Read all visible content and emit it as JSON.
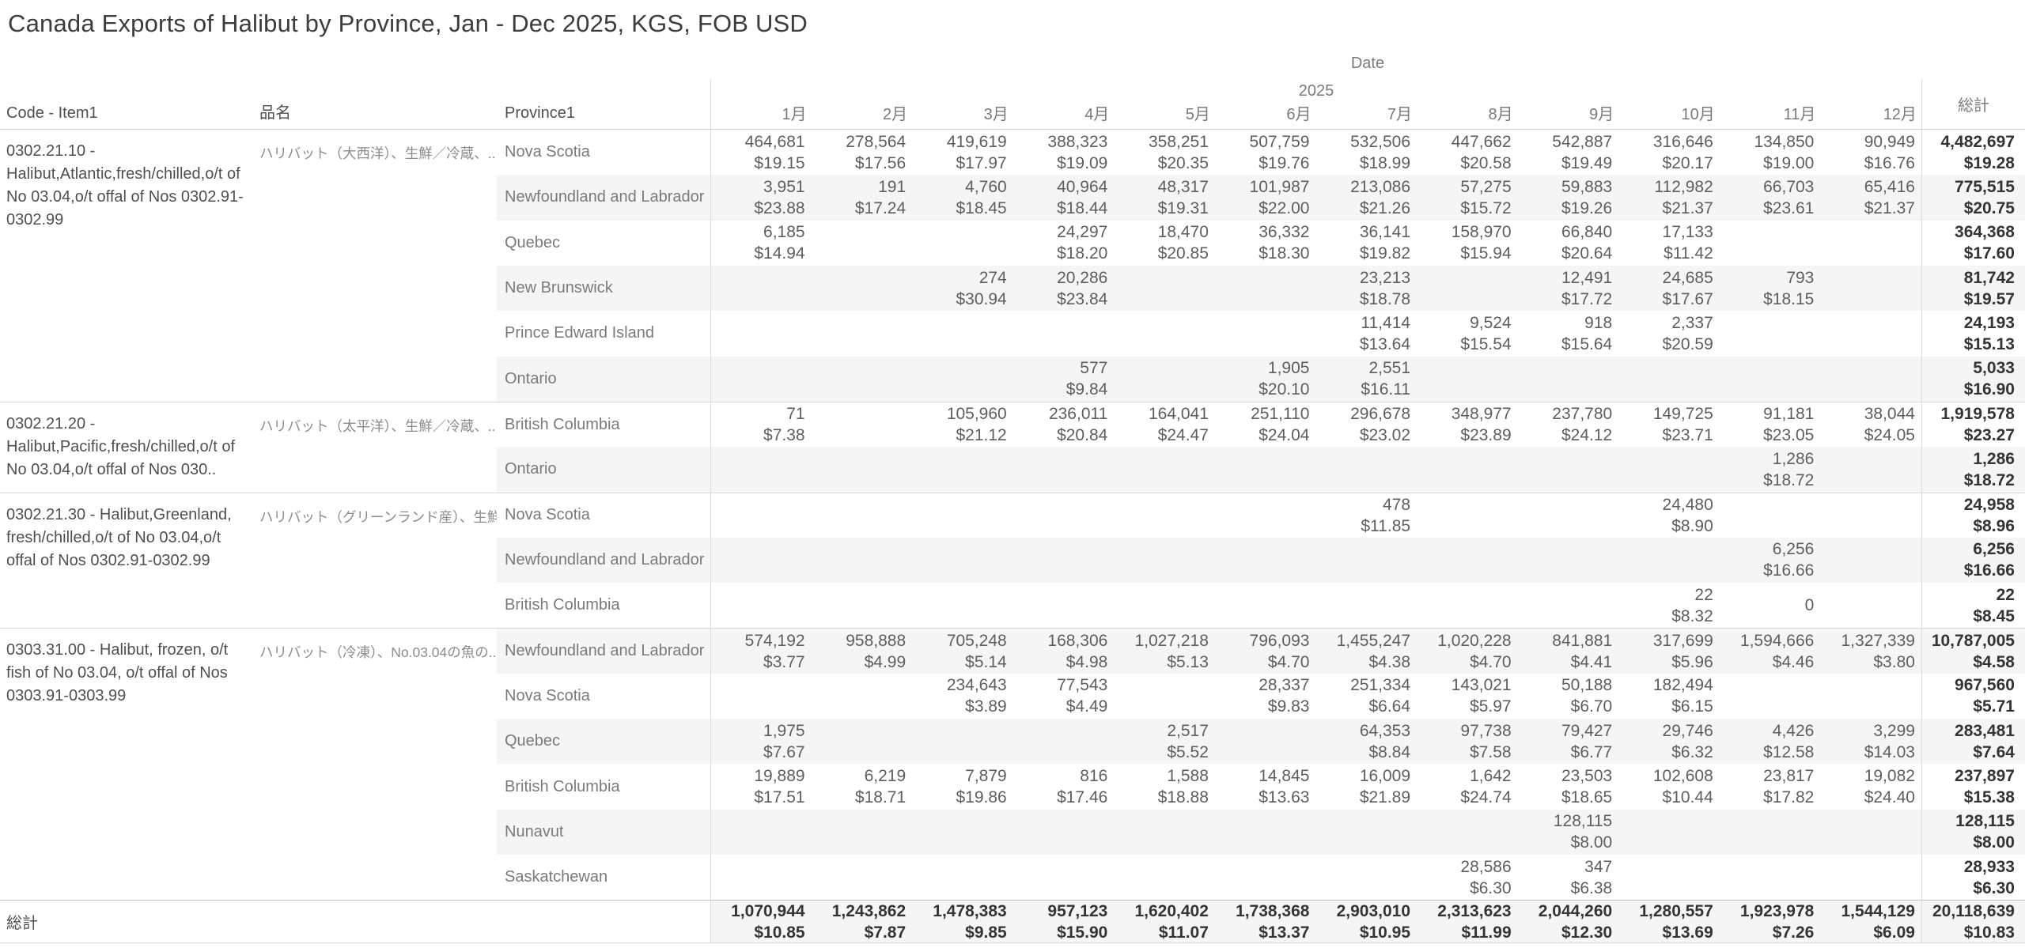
{
  "title": "Canada Exports of Halibut by Province, Jan - Dec 2025, KGS, FOB USD",
  "header": {
    "date_label": "Date",
    "year_label": "2025",
    "code_col": "Code - Item1",
    "name_col": "品名",
    "province_col": "Province1",
    "months": [
      "1月",
      "2月",
      "3月",
      "4月",
      "5月",
      "6月",
      "7月",
      "8月",
      "9月",
      "10月",
      "11月",
      "12月"
    ],
    "total_col": "総計"
  },
  "colors": {
    "banding": "#f5f5f5",
    "gridline": "#dcdcdc",
    "group_separator": "#d9d9d9",
    "grand_total_topline": "#c3c3c3",
    "title_text": "#3c3c3c",
    "header_text": "#7a7a7a",
    "data_text": "#5e5e5e",
    "total_text": "#343434"
  },
  "groups": [
    {
      "code": "0302.21.10 - Halibut,Atlantic,fresh/chilled,o/t of No 03.04,o/t offal of Nos 0302.91-0302.99",
      "name": "ハリバット（大西洋）、生鮮／冷蔵、..",
      "rows": [
        {
          "province": "Nova Scotia",
          "cells": [
            [
              "464,681",
              "$19.15"
            ],
            [
              "278,564",
              "$17.56"
            ],
            [
              "419,619",
              "$17.97"
            ],
            [
              "388,323",
              "$19.09"
            ],
            [
              "358,251",
              "$20.35"
            ],
            [
              "507,759",
              "$19.76"
            ],
            [
              "532,506",
              "$18.99"
            ],
            [
              "447,662",
              "$20.58"
            ],
            [
              "542,887",
              "$19.49"
            ],
            [
              "316,646",
              "$20.17"
            ],
            [
              "134,850",
              "$19.00"
            ],
            [
              "90,949",
              "$16.76"
            ]
          ],
          "total": [
            "4,482,697",
            "$19.28"
          ]
        },
        {
          "province": "Newfoundland and Labrador",
          "cells": [
            [
              "3,951",
              "$23.88"
            ],
            [
              "191",
              "$17.24"
            ],
            [
              "4,760",
              "$18.45"
            ],
            [
              "40,964",
              "$18.44"
            ],
            [
              "48,317",
              "$19.31"
            ],
            [
              "101,987",
              "$22.00"
            ],
            [
              "213,086",
              "$21.26"
            ],
            [
              "57,275",
              "$15.72"
            ],
            [
              "59,883",
              "$19.26"
            ],
            [
              "112,982",
              "$21.37"
            ],
            [
              "66,703",
              "$23.61"
            ],
            [
              "65,416",
              "$21.37"
            ]
          ],
          "total": [
            "775,515",
            "$20.75"
          ]
        },
        {
          "province": "Quebec",
          "cells": [
            [
              "6,185",
              "$14.94"
            ],
            null,
            null,
            [
              "24,297",
              "$18.20"
            ],
            [
              "18,470",
              "$20.85"
            ],
            [
              "36,332",
              "$18.30"
            ],
            [
              "36,141",
              "$19.82"
            ],
            [
              "158,970",
              "$15.94"
            ],
            [
              "66,840",
              "$20.64"
            ],
            [
              "17,133",
              "$11.42"
            ],
            null,
            null
          ],
          "total": [
            "364,368",
            "$17.60"
          ]
        },
        {
          "province": "New Brunswick",
          "cells": [
            null,
            null,
            [
              "274",
              "$30.94"
            ],
            [
              "20,286",
              "$23.84"
            ],
            null,
            null,
            [
              "23,213",
              "$18.78"
            ],
            null,
            [
              "12,491",
              "$17.72"
            ],
            [
              "24,685",
              "$17.67"
            ],
            [
              "793",
              "$18.15"
            ],
            null
          ],
          "total": [
            "81,742",
            "$19.57"
          ]
        },
        {
          "province": "Prince Edward Island",
          "cells": [
            null,
            null,
            null,
            null,
            null,
            null,
            [
              "11,414",
              "$13.64"
            ],
            [
              "9,524",
              "$15.54"
            ],
            [
              "918",
              "$15.64"
            ],
            [
              "2,337",
              "$20.59"
            ],
            null,
            null
          ],
          "total": [
            "24,193",
            "$15.13"
          ]
        },
        {
          "province": "Ontario",
          "cells": [
            null,
            null,
            null,
            [
              "577",
              "$9.84"
            ],
            null,
            [
              "1,905",
              "$20.10"
            ],
            [
              "2,551",
              "$16.11"
            ],
            null,
            null,
            null,
            null,
            null
          ],
          "total": [
            "5,033",
            "$16.90"
          ]
        }
      ]
    },
    {
      "code": "0302.21.20 - Halibut,Pacific,fresh/chilled,o/t of No 03.04,o/t offal of Nos 030..",
      "name": "ハリバット（太平洋）、生鮮／冷蔵、..",
      "rows": [
        {
          "province": "British Columbia",
          "cells": [
            [
              "71",
              "$7.38"
            ],
            null,
            [
              "105,960",
              "$21.12"
            ],
            [
              "236,011",
              "$20.84"
            ],
            [
              "164,041",
              "$24.47"
            ],
            [
              "251,110",
              "$24.04"
            ],
            [
              "296,678",
              "$23.02"
            ],
            [
              "348,977",
              "$23.89"
            ],
            [
              "237,780",
              "$24.12"
            ],
            [
              "149,725",
              "$23.71"
            ],
            [
              "91,181",
              "$23.05"
            ],
            [
              "38,044",
              "$24.05"
            ]
          ],
          "total": [
            "1,919,578",
            "$23.27"
          ]
        },
        {
          "province": "Ontario",
          "cells": [
            null,
            null,
            null,
            null,
            null,
            null,
            null,
            null,
            null,
            null,
            [
              "1,286",
              "$18.72"
            ],
            null
          ],
          "total": [
            "1,286",
            "$18.72"
          ]
        }
      ]
    },
    {
      "code": "0302.21.30 - Halibut,Greenland, fresh/chilled,o/t of No 03.04,o/t offal of Nos 0302.91-0302.99",
      "name": "ハリバット（グリーンランド産）、生鮮／..",
      "rows": [
        {
          "province": "Nova Scotia",
          "cells": [
            null,
            null,
            null,
            null,
            null,
            null,
            [
              "478",
              "$11.85"
            ],
            null,
            null,
            [
              "24,480",
              "$8.90"
            ],
            null,
            null
          ],
          "total": [
            "24,958",
            "$8.96"
          ]
        },
        {
          "province": "Newfoundland and Labrador",
          "cells": [
            null,
            null,
            null,
            null,
            null,
            null,
            null,
            null,
            null,
            null,
            [
              "6,256",
              "$16.66"
            ],
            null
          ],
          "total": [
            "6,256",
            "$16.66"
          ]
        },
        {
          "province": "British Columbia",
          "cells": [
            null,
            null,
            null,
            null,
            null,
            null,
            null,
            null,
            null,
            [
              "22",
              "$8.32"
            ],
            [
              "0",
              ""
            ],
            null
          ],
          "total": [
            "22",
            "$8.45"
          ]
        }
      ]
    },
    {
      "code": "0303.31.00 - Halibut, frozen, o/t fish of No 03.04, o/t offal of Nos 0303.91-0303.99",
      "name": "ハリバット（冷凍）、No.03.04の魚の..",
      "rows": [
        {
          "province": "Newfoundland and Labrador",
          "cells": [
            [
              "574,192",
              "$3.77"
            ],
            [
              "958,888",
              "$4.99"
            ],
            [
              "705,248",
              "$5.14"
            ],
            [
              "168,306",
              "$4.98"
            ],
            [
              "1,027,218",
              "$5.13"
            ],
            [
              "796,093",
              "$4.70"
            ],
            [
              "1,455,247",
              "$4.38"
            ],
            [
              "1,020,228",
              "$4.70"
            ],
            [
              "841,881",
              "$4.41"
            ],
            [
              "317,699",
              "$5.96"
            ],
            [
              "1,594,666",
              "$4.46"
            ],
            [
              "1,327,339",
              "$3.80"
            ]
          ],
          "total": [
            "10,787,005",
            "$4.58"
          ]
        },
        {
          "province": "Nova Scotia",
          "cells": [
            null,
            null,
            [
              "234,643",
              "$3.89"
            ],
            [
              "77,543",
              "$4.49"
            ],
            null,
            [
              "28,337",
              "$9.83"
            ],
            [
              "251,334",
              "$6.64"
            ],
            [
              "143,021",
              "$5.97"
            ],
            [
              "50,188",
              "$6.70"
            ],
            [
              "182,494",
              "$6.15"
            ],
            null,
            null
          ],
          "total": [
            "967,560",
            "$5.71"
          ]
        },
        {
          "province": "Quebec",
          "cells": [
            [
              "1,975",
              "$7.67"
            ],
            null,
            null,
            null,
            [
              "2,517",
              "$5.52"
            ],
            null,
            [
              "64,353",
              "$8.84"
            ],
            [
              "97,738",
              "$7.58"
            ],
            [
              "79,427",
              "$6.77"
            ],
            [
              "29,746",
              "$6.32"
            ],
            [
              "4,426",
              "$12.58"
            ],
            [
              "3,299",
              "$14.03"
            ]
          ],
          "total": [
            "283,481",
            "$7.64"
          ]
        },
        {
          "province": "British Columbia",
          "cells": [
            [
              "19,889",
              "$17.51"
            ],
            [
              "6,219",
              "$18.71"
            ],
            [
              "7,879",
              "$19.86"
            ],
            [
              "816",
              "$17.46"
            ],
            [
              "1,588",
              "$18.88"
            ],
            [
              "14,845",
              "$13.63"
            ],
            [
              "16,009",
              "$21.89"
            ],
            [
              "1,642",
              "$24.74"
            ],
            [
              "23,503",
              "$18.65"
            ],
            [
              "102,608",
              "$10.44"
            ],
            [
              "23,817",
              "$17.82"
            ],
            [
              "19,082",
              "$24.40"
            ]
          ],
          "total": [
            "237,897",
            "$15.38"
          ]
        },
        {
          "province": "Nunavut",
          "cells": [
            null,
            null,
            null,
            null,
            null,
            null,
            null,
            null,
            [
              "128,115",
              "$8.00"
            ],
            null,
            null,
            null
          ],
          "total": [
            "128,115",
            "$8.00"
          ]
        },
        {
          "province": "Saskatchewan",
          "cells": [
            null,
            null,
            null,
            null,
            null,
            null,
            null,
            [
              "28,586",
              "$6.30"
            ],
            [
              "347",
              "$6.38"
            ],
            null,
            null,
            null
          ],
          "total": [
            "28,933",
            "$6.30"
          ]
        }
      ]
    }
  ],
  "grand_total": {
    "label": "総計",
    "cells": [
      [
        "1,070,944",
        "$10.85"
      ],
      [
        "1,243,862",
        "$7.87"
      ],
      [
        "1,478,383",
        "$9.85"
      ],
      [
        "957,123",
        "$15.90"
      ],
      [
        "1,620,402",
        "$11.07"
      ],
      [
        "1,738,368",
        "$13.37"
      ],
      [
        "2,903,010",
        "$10.95"
      ],
      [
        "2,313,623",
        "$11.99"
      ],
      [
        "2,044,260",
        "$12.30"
      ],
      [
        "1,280,557",
        "$13.69"
      ],
      [
        "1,923,978",
        "$7.26"
      ],
      [
        "1,544,129",
        "$6.09"
      ]
    ],
    "total": [
      "20,118,639",
      "$10.83"
    ]
  }
}
